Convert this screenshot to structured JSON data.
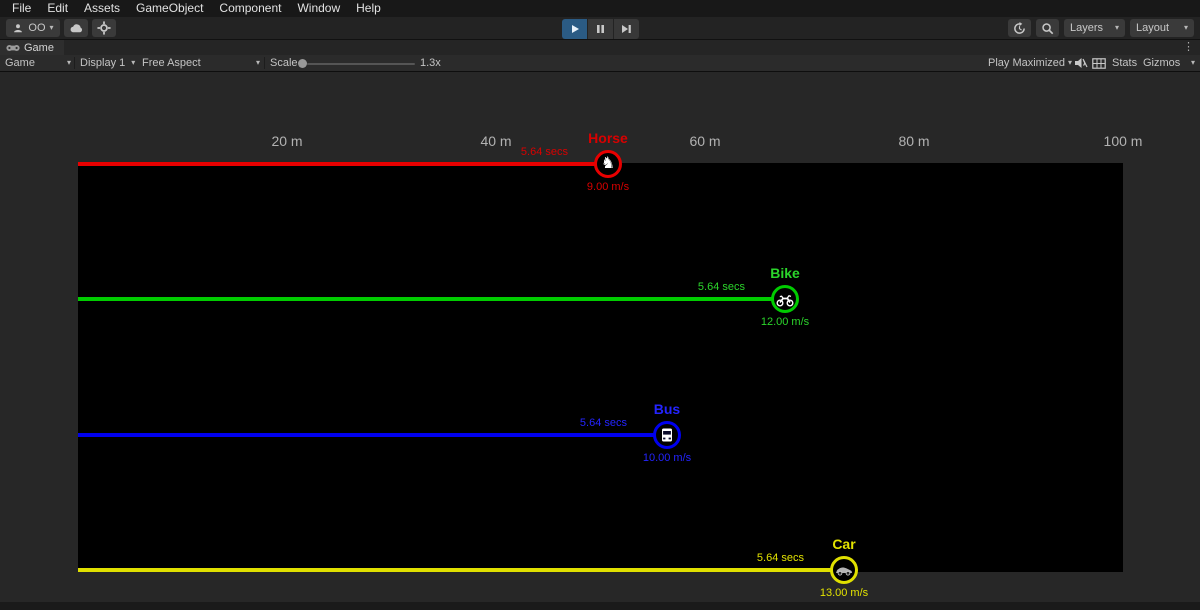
{
  "menu_bar": {
    "items": [
      "File",
      "Edit",
      "Assets",
      "GameObject",
      "Component",
      "Window",
      "Help"
    ]
  },
  "toolbar": {
    "account_label": "OO",
    "layers_label": "Layers",
    "layout_label": "Layout"
  },
  "tab_bar": {
    "game_tab_label": "Game"
  },
  "control_bar": {
    "view_dropdown": "Game",
    "display_dropdown": "Display 1",
    "aspect_dropdown": "Free Aspect",
    "scale_label": "Scale",
    "scale_value": "1.3x",
    "play_maximized_label": "Play Maximized",
    "stats_label": "Stats",
    "gizmos_label": "Gizmos"
  },
  "icons": {
    "caret": "▾",
    "ellipsis": "⋮",
    "horse_glyph": "♞"
  },
  "game_view": {
    "distance_markers": [
      "20 m",
      "40 m",
      "60 m",
      "80 m",
      "100 m"
    ],
    "racers": [
      {
        "name": "Horse",
        "time": "5.64 secs",
        "speed": "9.00 m/s",
        "time_s": 5.64,
        "speed_mps": 9,
        "color": "#d90000",
        "line_color": "#e80000",
        "icon": "horse-icon"
      },
      {
        "name": "Bike",
        "time": "5.64 secs",
        "speed": "12.00 m/s",
        "time_s": 5.64,
        "speed_mps": 12,
        "color": "#2bd52b",
        "line_color": "#00cc00",
        "icon": "motorbike-icon"
      },
      {
        "name": "Bus",
        "time": "5.64 secs",
        "speed": "10.00 m/s",
        "time_s": 5.64,
        "speed_mps": 10,
        "color": "#2424ff",
        "line_color": "#0000ee",
        "icon": "bus-icon"
      },
      {
        "name": "Car",
        "time": "5.64 secs",
        "speed": "13.00 m/s",
        "time_s": 5.64,
        "speed_mps": 13,
        "color": "#e3e300",
        "line_color": "#e0e000",
        "icon": "car-icon"
      }
    ]
  }
}
